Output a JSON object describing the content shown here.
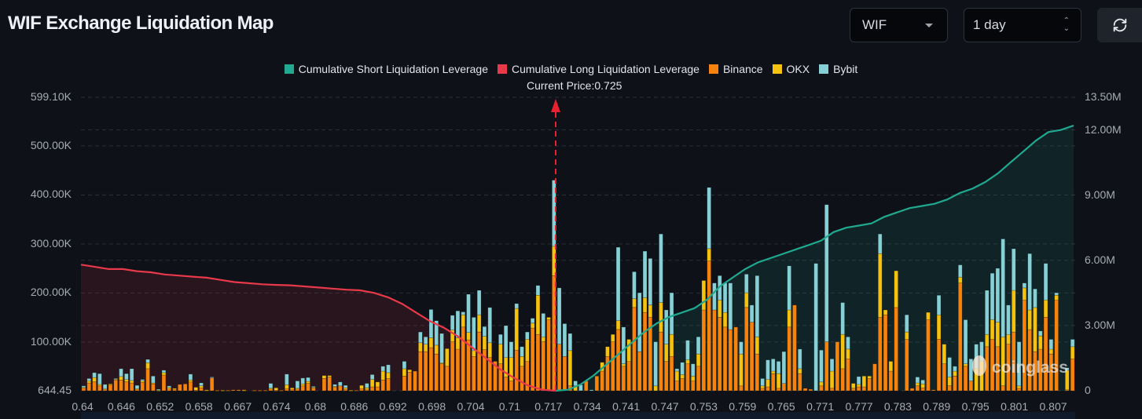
{
  "header": {
    "title": "WIF Exchange Liquidation Map",
    "coin_select": {
      "value": "WIF"
    },
    "range_select": {
      "value": "1 day"
    },
    "refresh_icon": "refresh-icon"
  },
  "chart_data": {
    "type": "bar",
    "title": "WIF Exchange Liquidation Map",
    "xlabel": "",
    "ylabel": "",
    "stacked": true,
    "legend_position": "top-center",
    "legend": [
      {
        "name": "Cumulative Short Liquidation Leverage",
        "color": "#20a98f"
      },
      {
        "name": "Cumulative Long Liquidation Leverage",
        "color": "#e8394a"
      },
      {
        "name": "Binance",
        "color": "#f7830f"
      },
      {
        "name": "OKX",
        "color": "#f5c20f"
      },
      {
        "name": "Bybit",
        "color": "#86d0d6"
      }
    ],
    "current_price_label": "Current Price:0.725",
    "current_price": 0.725,
    "watermark": "coinglass",
    "y_left": {
      "min": 644.45,
      "max": 599100,
      "ticks": [
        "599.10K",
        "500.00K",
        "400.00K",
        "300.00K",
        "200.00K",
        "100.00K",
        "644.45"
      ],
      "tick_values": [
        599100,
        500000,
        400000,
        300000,
        200000,
        100000,
        644.45
      ]
    },
    "y_right": {
      "min": 0,
      "max": 13500000,
      "ticks": [
        "13.50M",
        "12.00M",
        "9.00M",
        "6.00M",
        "3.00M",
        "0"
      ],
      "tick_values": [
        13500000,
        12000000,
        9000000,
        6000000,
        3000000,
        0
      ]
    },
    "x_ticks": [
      "0.64",
      "0.646",
      "0.652",
      "0.658",
      "0.667",
      "0.674",
      "0.68",
      "0.686",
      "0.692",
      "0.698",
      "0.704",
      "0.71",
      "0.717",
      "0.734",
      "0.741",
      "0.747",
      "0.753",
      "0.759",
      "0.765",
      "0.771",
      "0.777",
      "0.783",
      "0.789",
      "0.795",
      "0.801",
      "0.807"
    ],
    "bars_unit": "K",
    "bars": [
      [
        5,
        2,
        3
      ],
      [
        16,
        4,
        5
      ],
      [
        18,
        9,
        10
      ],
      [
        10,
        3,
        22
      ],
      [
        3,
        1,
        9
      ],
      [
        12,
        2,
        0
      ],
      [
        22,
        2,
        1
      ],
      [
        22,
        7,
        16
      ],
      [
        18,
        5,
        12
      ],
      [
        16,
        5,
        24
      ],
      [
        3,
        1,
        7
      ],
      [
        17,
        3,
        3
      ],
      [
        45,
        12,
        7
      ],
      [
        14,
        2,
        14
      ],
      [
        0,
        1,
        2
      ],
      [
        32,
        5,
        5
      ],
      [
        4,
        3,
        3
      ],
      [
        3,
        2,
        0
      ],
      [
        13,
        0,
        0
      ],
      [
        14,
        0,
        0
      ],
      [
        18,
        4,
        12
      ],
      [
        1,
        6,
        0
      ],
      [
        6,
        4,
        6
      ],
      [
        1,
        1,
        0
      ],
      [
        26,
        0,
        2
      ],
      [
        1,
        0,
        0
      ],
      [
        0,
        1,
        0
      ],
      [
        1,
        0,
        0
      ],
      [
        2,
        0,
        0
      ],
      [
        2,
        0,
        0
      ],
      [
        1,
        1,
        0
      ],
      [
        0,
        0,
        0
      ],
      [
        1,
        0,
        0
      ],
      [
        1,
        0,
        0
      ],
      [
        1,
        0,
        0
      ],
      [
        4,
        1,
        10
      ],
      [
        1,
        5,
        0
      ],
      [
        1,
        0,
        0
      ],
      [
        4,
        8,
        22
      ],
      [
        3,
        3,
        0
      ],
      [
        4,
        1,
        15
      ],
      [
        10,
        4,
        12
      ],
      [
        15,
        4,
        8
      ],
      [
        5,
        2,
        2
      ],
      [
        0,
        0,
        0
      ],
      [
        25,
        6,
        0
      ],
      [
        28,
        3,
        0
      ],
      [
        7,
        2,
        4
      ],
      [
        10,
        0,
        8
      ],
      [
        3,
        3,
        5
      ],
      [
        0,
        1,
        0
      ],
      [
        1,
        0,
        0
      ],
      [
        4,
        7,
        0
      ],
      [
        2,
        4,
        9
      ],
      [
        8,
        15,
        10
      ],
      [
        8,
        10,
        0
      ],
      [
        22,
        18,
        10
      ],
      [
        25,
        12,
        16
      ],
      [
        0,
        0,
        0
      ],
      [
        0,
        0,
        0
      ],
      [
        30,
        15,
        15
      ],
      [
        38,
        5,
        0
      ],
      [
        40,
        0,
        0
      ],
      [
        80,
        18,
        22
      ],
      [
        80,
        15,
        15
      ],
      [
        88,
        20,
        58
      ],
      [
        75,
        18,
        50
      ],
      [
        55,
        2,
        60
      ],
      [
        50,
        36,
        0
      ],
      [
        100,
        24,
        30
      ],
      [
        85,
        23,
        55
      ],
      [
        130,
        25,
        6
      ],
      [
        104,
        15,
        78
      ],
      [
        70,
        12,
        68
      ],
      [
        120,
        35,
        50
      ],
      [
        84,
        27,
        20
      ],
      [
        68,
        30,
        72
      ],
      [
        60,
        0,
        0
      ],
      [
        55,
        40,
        20
      ],
      [
        28,
        40,
        65
      ],
      [
        20,
        48,
        32
      ],
      [
        83,
        85,
        10
      ],
      [
        50,
        20,
        20
      ],
      [
        60,
        45,
        15
      ],
      [
        128,
        10,
        10
      ],
      [
        115,
        80,
        20
      ],
      [
        100,
        10,
        48
      ],
      [
        145,
        5,
        0
      ],
      [
        235,
        60,
        135
      ],
      [
        95,
        0,
        115
      ],
      [
        70,
        0,
        67
      ],
      [
        10,
        72,
        35
      ],
      [
        0,
        10,
        10
      ],
      [
        0,
        0,
        12
      ],
      [
        20,
        0,
        0
      ],
      [
        0,
        0,
        2
      ],
      [
        30,
        0,
        0
      ],
      [
        40,
        18,
        0
      ],
      [
        70,
        20,
        0
      ],
      [
        100,
        15,
        0
      ],
      [
        125,
        18,
        150
      ],
      [
        50,
        5,
        75
      ],
      [
        60,
        45,
        0
      ],
      [
        170,
        18,
        55
      ],
      [
        80,
        0,
        120
      ],
      [
        160,
        30,
        95
      ],
      [
        150,
        25,
        95
      ],
      [
        0,
        10,
        90
      ],
      [
        120,
        60,
        140
      ],
      [
        60,
        35,
        70
      ],
      [
        70,
        45,
        85
      ],
      [
        20,
        20,
        5
      ],
      [
        25,
        8,
        25
      ],
      [
        55,
        8,
        40
      ],
      [
        20,
        10,
        25
      ],
      [
        50,
        25,
        35
      ],
      [
        165,
        60,
        0
      ],
      [
        265,
        25,
        125
      ],
      [
        165,
        0,
        55
      ],
      [
        150,
        35,
        50
      ],
      [
        130,
        30,
        60
      ],
      [
        125,
        0,
        95
      ],
      [
        130,
        0,
        0
      ],
      [
        10,
        65,
        25
      ],
      [
        170,
        30,
        38
      ],
      [
        140,
        0,
        35
      ],
      [
        75,
        35,
        125
      ],
      [
        5,
        5,
        15
      ],
      [
        8,
        15,
        40
      ],
      [
        35,
        5,
        25
      ],
      [
        5,
        30,
        25
      ],
      [
        15,
        0,
        65
      ],
      [
        130,
        35,
        90
      ],
      [
        175,
        0,
        0
      ],
      [
        35,
        10,
        40
      ],
      [
        5,
        0,
        0
      ],
      [
        3,
        0,
        0
      ],
      [
        0,
        0,
        260
      ],
      [
        10,
        8,
        65
      ],
      [
        100,
        0,
        280
      ],
      [
        5,
        35,
        25
      ],
      [
        100,
        0,
        0
      ],
      [
        45,
        70,
        65
      ],
      [
        65,
        20,
        25
      ],
      [
        5,
        10,
        0
      ],
      [
        8,
        5,
        16
      ],
      [
        8,
        22,
        0
      ],
      [
        25,
        5,
        0
      ],
      [
        55,
        0,
        0
      ],
      [
        150,
        130,
        40
      ],
      [
        155,
        10,
        0
      ],
      [
        40,
        20,
        0
      ],
      [
        170,
        75,
        0
      ],
      [
        0,
        0,
        0
      ],
      [
        105,
        15,
        35
      ],
      [
        5,
        0,
        0
      ],
      [
        10,
        6,
        12
      ],
      [
        6,
        8,
        8
      ],
      [
        145,
        15,
        0
      ],
      [
        2,
        0,
        0
      ],
      [
        105,
        50,
        40
      ],
      [
        55,
        40,
        0
      ],
      [
        10,
        18,
        40
      ],
      [
        30,
        10,
        10
      ],
      [
        220,
        12,
        25
      ],
      [
        50,
        5,
        90
      ],
      [
        20,
        0,
        45
      ],
      [
        0,
        45,
        50
      ],
      [
        0,
        60,
        40
      ],
      [
        90,
        25,
        90
      ],
      [
        105,
        40,
        95
      ],
      [
        90,
        50,
        110
      ],
      [
        10,
        100,
        200
      ],
      [
        95,
        20,
        60
      ],
      [
        120,
        85,
        85
      ],
      [
        5,
        5,
        90
      ],
      [
        185,
        25,
        10
      ],
      [
        125,
        40,
        115
      ],
      [
        80,
        90,
        38
      ],
      [
        85,
        27,
        10
      ],
      [
        150,
        35,
        75
      ],
      [
        75,
        10,
        20
      ],
      [
        185,
        10,
        5
      ],
      [
        0,
        0,
        0
      ],
      [
        2,
        40,
        5
      ],
      [
        65,
        25,
        15
      ]
    ],
    "cumulative_long": {
      "unit": "M",
      "start_price": 0.64,
      "end_price": 0.725,
      "values": [
        5.8,
        5.7,
        5.6,
        5.6,
        5.5,
        5.45,
        5.35,
        5.3,
        5.25,
        5.2,
        5.1,
        5.0,
        4.95,
        4.9,
        4.87,
        4.85,
        4.8,
        4.75,
        4.7,
        4.65,
        4.62,
        4.5,
        4.3,
        4.0,
        3.6,
        3.2,
        2.9,
        2.5,
        2.0,
        1.5,
        1.0,
        0.6,
        0.25,
        0.05,
        0.0
      ]
    },
    "cumulative_short": {
      "unit": "M",
      "start_price": 0.725,
      "end_price": 0.81,
      "values": [
        0.0,
        0.05,
        0.3,
        0.7,
        1.2,
        1.7,
        2.2,
        2.7,
        3.1,
        3.4,
        3.6,
        3.8,
        4.2,
        4.8,
        5.2,
        5.6,
        5.9,
        6.1,
        6.3,
        6.5,
        6.7,
        6.9,
        7.3,
        7.5,
        7.6,
        7.7,
        8.0,
        8.2,
        8.4,
        8.5,
        8.6,
        8.8,
        9.1,
        9.3,
        9.6,
        10.0,
        10.5,
        11.0,
        11.5,
        11.9,
        12.0,
        12.2
      ]
    }
  }
}
